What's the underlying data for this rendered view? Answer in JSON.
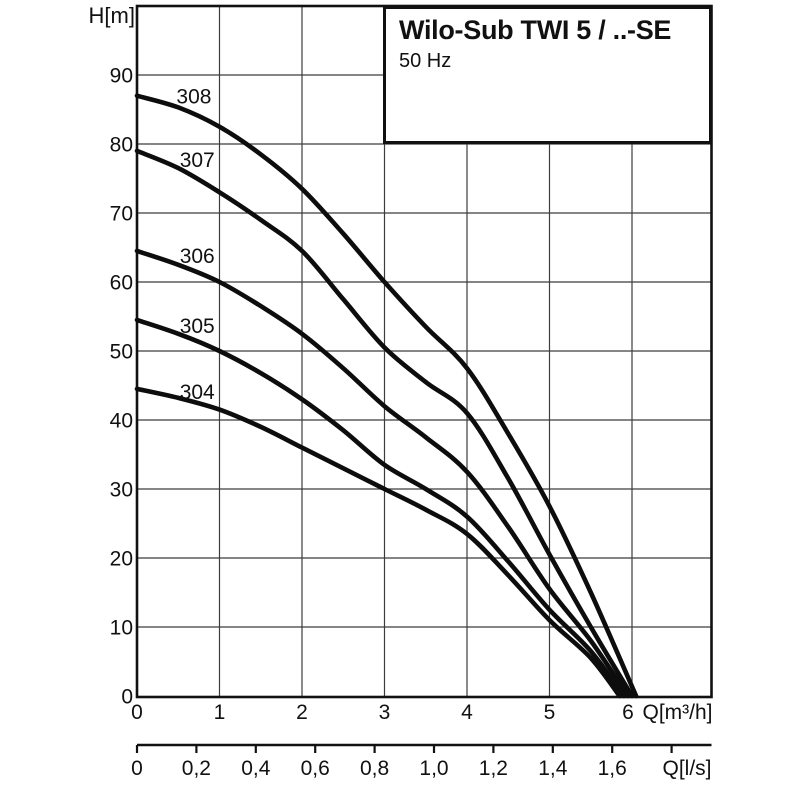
{
  "title_box": {
    "title": "Wilo-Sub TWI 5 / ..-SE",
    "subtitle": "50 Hz"
  },
  "colors": {
    "background": "#ffffff",
    "curve": "#0d0d0d",
    "grid": "#3c3c3c",
    "border": "#111111",
    "text": "#111111"
  },
  "chart_data": {
    "type": "line",
    "title": "Wilo-Sub TWI 5 / ..-SE",
    "subtitle": "50 Hz",
    "ylabel": "H[m]",
    "xlabel": "Q[m³/h]",
    "xlabel_secondary": "Q[l/s]",
    "xlim": [
      0,
      6.96
    ],
    "ylim": [
      0,
      100
    ],
    "grid": true,
    "x_ticks": [
      0,
      1,
      2,
      3,
      4,
      5,
      6
    ],
    "y_ticks": [
      0,
      10,
      20,
      30,
      40,
      50,
      60,
      70,
      80,
      90
    ],
    "secondary_axis": {
      "unit_conversion_m3h_per_ls": 3.6,
      "tick_values": [
        0,
        0.2,
        0.4,
        0.6,
        0.8,
        1.0,
        1.2,
        1.4,
        1.6
      ],
      "tick_labels": [
        "0",
        "0,2",
        "0,4",
        "0,6",
        "0,8",
        "1,0",
        "1,2",
        "1,4",
        "1,6"
      ],
      "extra_unlabeled_tick": 1.8
    },
    "series": [
      {
        "name": "308",
        "label_anchor": [
          0.69,
          87.0
        ],
        "points": [
          [
            0,
            87
          ],
          [
            0.5,
            85.3
          ],
          [
            1,
            82.5
          ],
          [
            1.5,
            78.5
          ],
          [
            2,
            73.5
          ],
          [
            2.5,
            67
          ],
          [
            3,
            60
          ],
          [
            3.5,
            53.5
          ],
          [
            4,
            47.5
          ],
          [
            4.5,
            38
          ],
          [
            5,
            27.5
          ],
          [
            5.5,
            15
          ],
          [
            6.05,
            0
          ]
        ]
      },
      {
        "name": "307",
        "label_anchor": [
          0.73,
          77.8
        ],
        "points": [
          [
            0,
            79
          ],
          [
            0.5,
            76.5
          ],
          [
            1,
            73
          ],
          [
            1.5,
            69
          ],
          [
            2,
            64.5
          ],
          [
            2.5,
            57.5
          ],
          [
            3,
            50.5
          ],
          [
            3.5,
            45.5
          ],
          [
            4,
            41
          ],
          [
            4.5,
            31.5
          ],
          [
            5,
            20.5
          ],
          [
            5.5,
            10
          ],
          [
            6.0,
            0
          ]
        ]
      },
      {
        "name": "306",
        "label_anchor": [
          0.73,
          63.9
        ],
        "points": [
          [
            0,
            64.5
          ],
          [
            0.5,
            62.5
          ],
          [
            1,
            60
          ],
          [
            1.5,
            56.5
          ],
          [
            2,
            52.5
          ],
          [
            2.5,
            47.5
          ],
          [
            3,
            42
          ],
          [
            3.5,
            37.5
          ],
          [
            4,
            32.5
          ],
          [
            4.5,
            24.5
          ],
          [
            5,
            15.5
          ],
          [
            5.5,
            8
          ],
          [
            5.95,
            0
          ]
        ]
      },
      {
        "name": "305",
        "label_anchor": [
          0.73,
          53.8
        ],
        "points": [
          [
            0,
            54.5
          ],
          [
            0.5,
            52.5
          ],
          [
            1,
            50
          ],
          [
            1.5,
            46.8
          ],
          [
            2,
            43
          ],
          [
            2.5,
            38.5
          ],
          [
            3,
            33.5
          ],
          [
            3.5,
            30
          ],
          [
            4,
            26
          ],
          [
            4.5,
            19.5
          ],
          [
            5,
            12.5
          ],
          [
            5.5,
            6.5
          ],
          [
            5.9,
            0
          ]
        ]
      },
      {
        "name": "304",
        "label_anchor": [
          0.73,
          44.2
        ],
        "points": [
          [
            0,
            44.5
          ],
          [
            0.5,
            43.2
          ],
          [
            1,
            41.5
          ],
          [
            1.5,
            39
          ],
          [
            2,
            36
          ],
          [
            2.5,
            33
          ],
          [
            3,
            30
          ],
          [
            3.5,
            27
          ],
          [
            4,
            23.5
          ],
          [
            4.5,
            17.5
          ],
          [
            5,
            11
          ],
          [
            5.5,
            5.5
          ],
          [
            5.85,
            0
          ]
        ]
      }
    ]
  }
}
